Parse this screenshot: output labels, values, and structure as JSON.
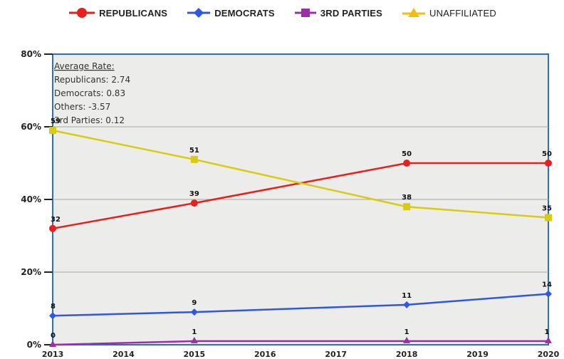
{
  "chart_data": {
    "type": "line",
    "title": "",
    "xlabel": "",
    "ylabel": "",
    "x": [
      2013,
      2015,
      2018,
      2020
    ],
    "x_ticks": [
      "2013",
      "2014",
      "2015",
      "2016",
      "2017",
      "2018",
      "2019",
      "2020"
    ],
    "ylim": [
      0,
      80
    ],
    "y_ticks": [
      "0%",
      "20%",
      "40%",
      "60%",
      "80%"
    ],
    "grid": true,
    "legend_position": "top",
    "series": [
      {
        "name": "REPUBLICANS",
        "color": "#e8201c",
        "marker": "circle",
        "values": [
          32,
          39,
          50,
          50
        ],
        "labels": [
          "32",
          "39",
          "50",
          "50"
        ]
      },
      {
        "name": "DEMOCRATS",
        "color": "#2f57e0",
        "marker": "diamond",
        "values": [
          8,
          9,
          11,
          14
        ],
        "labels": [
          "8",
          "9",
          "11",
          "14"
        ]
      },
      {
        "name": "3RD PARTIES",
        "color": "#9b2fa8",
        "marker": "triangle",
        "values": [
          0,
          1,
          1,
          1
        ],
        "labels": [
          "0",
          "1",
          "1",
          "1"
        ]
      },
      {
        "name": "UNAFFILIATED",
        "color": "#d8cc12",
        "marker": "square",
        "values": [
          59,
          51,
          38,
          35
        ],
        "labels": [
          "59",
          "51",
          "38",
          "35"
        ]
      }
    ],
    "annotation": {
      "heading": "Average Rate:",
      "lines": [
        "Republicans: 2.74",
        "Democrats: 0.83",
        "Others: -3.57",
        "3rd Parties: 0.12"
      ]
    }
  },
  "legend": [
    {
      "label": "REPUBLICANS",
      "color": "#e8201c",
      "marker": "circle",
      "bold": true
    },
    {
      "label": "DEMOCRATS",
      "color": "#2f57e0",
      "marker": "diamond",
      "bold": true
    },
    {
      "label": "3RD PARTIES",
      "color": "#9b2fa8",
      "marker": "square",
      "bold": true
    },
    {
      "label": "UNAFFILIATED",
      "color": "#f0c010",
      "marker": "triangle",
      "bold": false
    }
  ]
}
